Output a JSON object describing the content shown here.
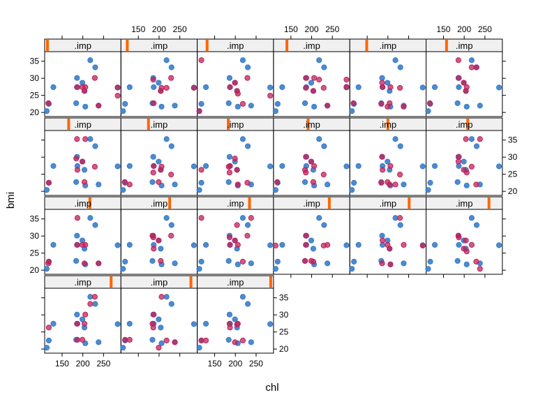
{
  "chart_data": {
    "type": "scatter",
    "layout": {
      "columns": 6,
      "rows": 4
    },
    "xlabel": "chl",
    "ylabel": "bmi",
    "xlim": [
      108,
      292
    ],
    "ylim": [
      18.8,
      37.8
    ],
    "x_ticks": [
      150,
      200,
      250
    ],
    "y_ticks": [
      20,
      25,
      30,
      35
    ],
    "strip_label": ".imp",
    "colors": {
      "observed": "#3a7dc9",
      "imputed": "#c0225a",
      "strip_marker": "#ff6600",
      "strip_bg": "#f0f0f0"
    },
    "observed": [
      [
        113,
        20.4
      ],
      [
        118,
        22.5
      ],
      [
        129,
        27.4
      ],
      [
        184,
        22.7
      ],
      [
        186,
        30.1
      ],
      [
        187,
        27.4
      ],
      [
        199,
        28.7
      ],
      [
        204,
        26.3
      ],
      [
        206,
        21.7
      ],
      [
        218,
        35.3
      ],
      [
        230,
        33.2
      ],
      [
        238,
        22.0
      ],
      [
        284,
        27.3
      ]
    ],
    "panels": [
      {
        "index": 1,
        "imputed": [
          [
            117,
            22.7
          ],
          [
            186,
            27.4
          ],
          [
            199,
            27.4
          ],
          [
            204,
            26.3
          ],
          [
            206,
            27.4
          ],
          [
            229,
            30.1
          ],
          [
            238,
            22.0
          ],
          [
            284,
            24.9
          ],
          [
            284,
            27.3
          ]
        ]
      },
      {
        "index": 2,
        "imputed": [
          [
            186,
            29.6
          ],
          [
            187,
            22.7
          ],
          [
            204,
            26.3
          ],
          [
            206,
            27.2
          ],
          [
            218,
            27.2
          ],
          [
            229,
            30.1
          ],
          [
            284,
            27.2
          ]
        ]
      },
      {
        "index": 3,
        "imputed": [
          [
            113,
            20.4
          ],
          [
            118,
            35.3
          ],
          [
            187,
            27.4
          ],
          [
            199,
            28.7
          ],
          [
            204,
            26.3
          ],
          [
            206,
            25.5
          ],
          [
            218,
            22.5
          ],
          [
            229,
            30.1
          ],
          [
            284,
            24.9
          ]
        ]
      },
      {
        "index": 4,
        "imputed": [
          [
            186,
            27.2
          ],
          [
            187,
            30.1
          ],
          [
            204,
            26.3
          ],
          [
            206,
            30.1
          ],
          [
            218,
            29.6
          ],
          [
            229,
            27.2
          ],
          [
            238,
            22.0
          ],
          [
            284,
            29.6
          ],
          [
            284,
            27.5
          ]
        ]
      },
      {
        "index": 5,
        "imputed": [
          [
            117,
            22.7
          ],
          [
            184,
            22.5
          ],
          [
            186,
            28.7
          ],
          [
            187,
            27.4
          ],
          [
            199,
            21.7
          ],
          [
            204,
            22.7
          ],
          [
            206,
            27.4
          ],
          [
            229,
            27.2
          ],
          [
            238,
            21.7
          ]
        ]
      },
      {
        "index": 6,
        "imputed": [
          [
            117,
            22.7
          ],
          [
            186,
            35.3
          ],
          [
            187,
            30.1
          ],
          [
            199,
            28.7
          ],
          [
            204,
            26.3
          ],
          [
            206,
            27.4
          ],
          [
            218,
            33.2
          ],
          [
            229,
            33.2
          ]
        ]
      },
      {
        "index": 7,
        "imputed": [
          [
            118,
            22.5
          ],
          [
            184,
            29.6
          ],
          [
            186,
            35.3
          ],
          [
            187,
            26.3
          ],
          [
            199,
            28.7
          ],
          [
            204,
            22.7
          ],
          [
            206,
            35.3
          ],
          [
            229,
            27.2
          ]
        ]
      },
      {
        "index": 8,
        "imputed": [
          [
            117,
            22.7
          ],
          [
            129,
            22.0
          ],
          [
            186,
            25.5
          ],
          [
            187,
            27.4
          ],
          [
            199,
            22.7
          ],
          [
            204,
            26.3
          ],
          [
            206,
            27.2
          ],
          [
            229,
            24.9
          ]
        ]
      },
      {
        "index": 9,
        "imputed": [
          [
            118,
            26.3
          ],
          [
            184,
            27.2
          ],
          [
            186,
            25.5
          ],
          [
            187,
            27.4
          ],
          [
            199,
            29.6
          ],
          [
            204,
            26.3
          ],
          [
            206,
            22.0
          ],
          [
            229,
            22.5
          ]
        ]
      },
      {
        "index": 10,
        "imputed": [
          [
            117,
            22.7
          ],
          [
            184,
            26.3
          ],
          [
            186,
            25.5
          ],
          [
            187,
            30.1
          ],
          [
            199,
            28.7
          ],
          [
            204,
            22.7
          ],
          [
            206,
            27.4
          ],
          [
            229,
            24.9
          ]
        ]
      },
      {
        "index": 11,
        "imputed": [
          [
            184,
            22.5
          ],
          [
            186,
            30.1
          ],
          [
            187,
            26.3
          ],
          [
            199,
            22.7
          ],
          [
            204,
            22.0
          ],
          [
            206,
            27.4
          ],
          [
            218,
            22.0
          ],
          [
            229,
            24.9
          ]
        ]
      },
      {
        "index": 12,
        "imputed": [
          [
            186,
            28.7
          ],
          [
            187,
            30.1
          ],
          [
            199,
            26.3
          ],
          [
            204,
            35.3
          ],
          [
            206,
            25.5
          ],
          [
            218,
            27.2
          ],
          [
            229,
            22.0
          ],
          [
            238,
            35.3
          ]
        ]
      },
      {
        "index": 13,
        "imputed": [
          [
            117,
            22.0
          ],
          [
            118,
            22.5
          ],
          [
            186,
            27.4
          ],
          [
            187,
            35.3
          ],
          [
            199,
            27.4
          ],
          [
            204,
            22.0
          ],
          [
            206,
            27.4
          ],
          [
            238,
            22.0
          ]
        ]
      },
      {
        "index": 14,
        "imputed": [
          [
            184,
            30.1
          ],
          [
            186,
            29.6
          ],
          [
            187,
            26.3
          ],
          [
            199,
            28.7
          ],
          [
            204,
            22.7
          ],
          [
            229,
            30.1
          ]
        ]
      },
      {
        "index": 15,
        "imputed": [
          [
            118,
            35.3
          ],
          [
            186,
            29.6
          ],
          [
            187,
            27.4
          ],
          [
            199,
            28.7
          ],
          [
            204,
            33.2
          ],
          [
            206,
            27.4
          ],
          [
            218,
            22.5
          ],
          [
            229,
            30.1
          ],
          [
            238,
            35.3
          ]
        ]
      },
      {
        "index": 16,
        "imputed": [
          [
            113,
            27.2
          ],
          [
            184,
            22.7
          ],
          [
            186,
            27.4
          ],
          [
            187,
            30.1
          ],
          [
            199,
            22.7
          ],
          [
            204,
            22.5
          ],
          [
            229,
            27.2
          ],
          [
            238,
            27.4
          ]
        ]
      },
      {
        "index": 17,
        "imputed": [
          [
            186,
            22.0
          ],
          [
            187,
            28.7
          ],
          [
            199,
            27.4
          ],
          [
            204,
            26.3
          ],
          [
            206,
            21.7
          ],
          [
            229,
            35.3
          ],
          [
            238,
            27.4
          ],
          [
            284,
            27.2
          ]
        ]
      },
      {
        "index": 18,
        "imputed": [
          [
            186,
            30.1
          ],
          [
            187,
            29.6
          ],
          [
            199,
            26.3
          ],
          [
            204,
            28.7
          ],
          [
            206,
            25.5
          ],
          [
            218,
            27.4
          ],
          [
            229,
            22.5
          ],
          [
            238,
            20.4
          ]
        ]
      },
      {
        "index": 19,
        "imputed": [
          [
            118,
            26.3
          ],
          [
            186,
            27.4
          ],
          [
            187,
            22.7
          ],
          [
            199,
            22.7
          ],
          [
            204,
            27.4
          ],
          [
            206,
            30.1
          ],
          [
            218,
            33.2
          ],
          [
            229,
            35.3
          ]
        ]
      },
      {
        "index": 20,
        "imputed": [
          [
            118,
            22.7
          ],
          [
            129,
            22.7
          ],
          [
            184,
            27.4
          ],
          [
            186,
            26.3
          ],
          [
            187,
            30.1
          ],
          [
            199,
            20.4
          ],
          [
            206,
            35.3
          ],
          [
            218,
            22.5
          ],
          [
            238,
            22.0
          ]
        ]
      },
      {
        "index": 21,
        "imputed": [
          [
            118,
            22.5
          ],
          [
            129,
            22.5
          ],
          [
            186,
            27.4
          ],
          [
            187,
            26.3
          ],
          [
            199,
            22.0
          ],
          [
            204,
            27.2
          ],
          [
            206,
            27.4
          ],
          [
            218,
            22.5
          ]
        ]
      }
    ]
  }
}
